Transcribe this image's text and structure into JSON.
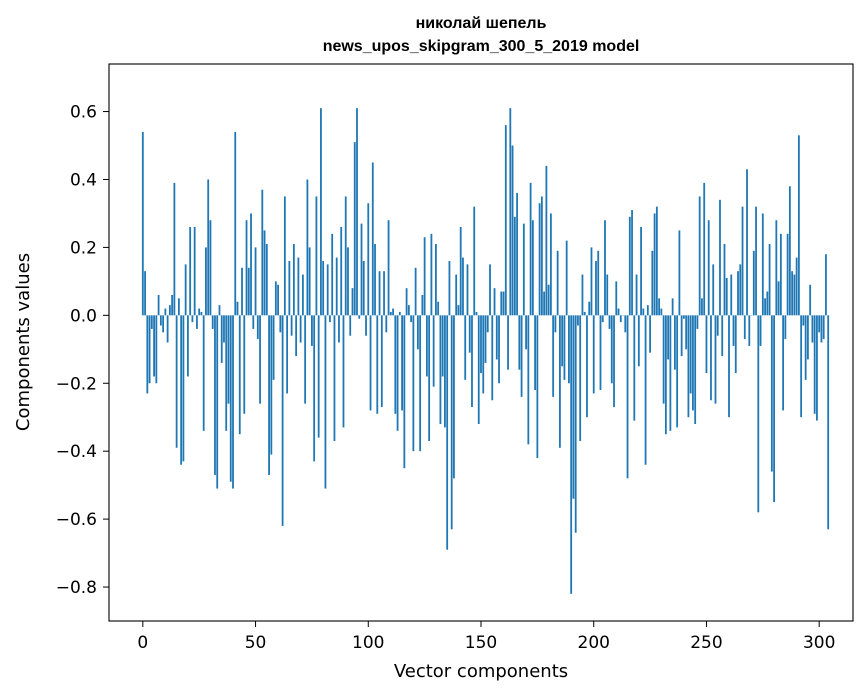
{
  "chart_data": {
    "type": "bar",
    "title": "николай шепель",
    "subtitle": "news_upos_skipgram_300_5_2019 model",
    "xlabel": "Vector components",
    "ylabel": "Components values",
    "xlim": [
      -15,
      315
    ],
    "ylim": [
      -0.9,
      0.74
    ],
    "xticks": [
      0,
      50,
      100,
      150,
      200,
      250,
      300
    ],
    "yticks": [
      -0.8,
      -0.6,
      -0.4,
      -0.2,
      0.0,
      0.2,
      0.4,
      0.6
    ],
    "ytick_labels": [
      "−0.8",
      "−0.6",
      "−0.4",
      "−0.2",
      "0.0",
      "0.2",
      "0.4",
      "0.6"
    ],
    "xtick_labels": [
      "0",
      "50",
      "100",
      "150",
      "200",
      "250",
      "300"
    ],
    "grid": false,
    "bar_color": "#1f77b4",
    "values": [
      0.54,
      0.13,
      -0.23,
      -0.2,
      -0.04,
      -0.18,
      -0.2,
      0.06,
      -0.03,
      -0.05,
      0.02,
      -0.08,
      0.03,
      0.06,
      0.39,
      -0.39,
      0.05,
      -0.44,
      -0.43,
      0.15,
      -0.18,
      0.26,
      -0.02,
      0.26,
      -0.04,
      0.02,
      0.01,
      -0.34,
      0.2,
      0.4,
      0.28,
      -0.04,
      -0.47,
      -0.51,
      0.03,
      -0.14,
      -0.08,
      -0.34,
      -0.26,
      -0.49,
      -0.51,
      0.54,
      0.04,
      -0.35,
      0.14,
      -0.29,
      0.28,
      0.14,
      0.3,
      -0.04,
      0.2,
      -0.07,
      -0.26,
      0.37,
      0.25,
      0.21,
      -0.47,
      -0.41,
      -0.19,
      0.1,
      0.09,
      -0.05,
      -0.62,
      0.35,
      -0.23,
      0.16,
      -0.06,
      0.21,
      -0.12,
      0.17,
      -0.08,
      0.12,
      -0.26,
      0.4,
      0.2,
      -0.09,
      -0.43,
      0.35,
      -0.36,
      0.61,
      0.16,
      -0.51,
      0.15,
      -0.02,
      0.24,
      -0.37,
      0.17,
      -0.08,
      0.26,
      -0.33,
      0.35,
      0.2,
      -0.06,
      0.08,
      0.51,
      0.61,
      -0.01,
      0.27,
      0.16,
      -0.06,
      0.33,
      -0.28,
      0.45,
      0.21,
      -0.29,
      0.13,
      -0.27,
      0.13,
      -0.05,
      0.28,
      0.01,
      0.02,
      -0.29,
      -0.34,
      0.01,
      -0.28,
      -0.45,
      0.08,
      0.03,
      -0.02,
      -0.4,
      0.14,
      -0.1,
      -0.4,
      0.06,
      0.23,
      -0.18,
      -0.37,
      0.24,
      -0.21,
      0.21,
      0.04,
      -0.32,
      -0.18,
      -0.33,
      -0.69,
      0.16,
      -0.63,
      -0.48,
      0.12,
      0.03,
      0.26,
      0.17,
      -0.19,
      0.15,
      -0.11,
      -0.27,
      0.32,
      0.01,
      -0.32,
      -0.17,
      -0.23,
      -0.14,
      -0.05,
      0.15,
      -0.25,
      0.08,
      -0.13,
      -0.2,
      0.07,
      0.07,
      0.56,
      -0.16,
      0.61,
      0.5,
      0.29,
      0.36,
      -0.16,
      -0.24,
      0.27,
      -0.1,
      -0.38,
      0.39,
      0.28,
      -0.22,
      -0.42,
      0.33,
      0.35,
      0.07,
      0.44,
      0.09,
      0.3,
      -0.24,
      -0.05,
      0.19,
      -0.39,
      -0.15,
      -0.19,
      0.22,
      -0.2,
      -0.82,
      -0.54,
      -0.64,
      -0.03,
      -0.37,
      0.12,
      0.01,
      -0.3,
      0.04,
      0.2,
      -0.23,
      0.16,
      0.19,
      -0.22,
      -0.02,
      0.28,
      0.12,
      -0.04,
      -0.2,
      -0.27,
      0.1,
      0.02,
      -0.02,
      0.0,
      -0.05,
      -0.48,
      0.29,
      0.31,
      -0.31,
      0.12,
      -0.15,
      0.26,
      0.02,
      -0.44,
      0.03,
      -0.11,
      0.19,
      0.3,
      0.32,
      0.05,
      0.02,
      -0.26,
      -0.35,
      -0.13,
      -0.34,
      0.05,
      -0.16,
      -0.33,
      0.25,
      -0.12,
      -0.01,
      -0.1,
      -0.3,
      -0.23,
      -0.28,
      -0.32,
      -0.04,
      0.35,
      0.05,
      0.39,
      -0.17,
      0.28,
      -0.25,
      0.15,
      -0.26,
      -0.06,
      0.34,
      -0.12,
      0.21,
      0.11,
      -0.3,
      0.12,
      -0.09,
      -0.17,
      0.13,
      0.15,
      0.32,
      -0.07,
      0.43,
      -0.09,
      0.0,
      0.19,
      0.32,
      -0.58,
      -0.09,
      0.3,
      0.05,
      0.07,
      0.21,
      -0.46,
      -0.55,
      0.28,
      0.1,
      0.24,
      -0.28,
      -0.07,
      0.24,
      0.38,
      0.13,
      0.12,
      0.17,
      0.53,
      -0.3,
      -0.03,
      -0.19,
      -0.13,
      0.09,
      -0.08,
      -0.29,
      -0.31,
      -0.05,
      -0.08,
      -0.07,
      0.18,
      -0.63
    ]
  }
}
